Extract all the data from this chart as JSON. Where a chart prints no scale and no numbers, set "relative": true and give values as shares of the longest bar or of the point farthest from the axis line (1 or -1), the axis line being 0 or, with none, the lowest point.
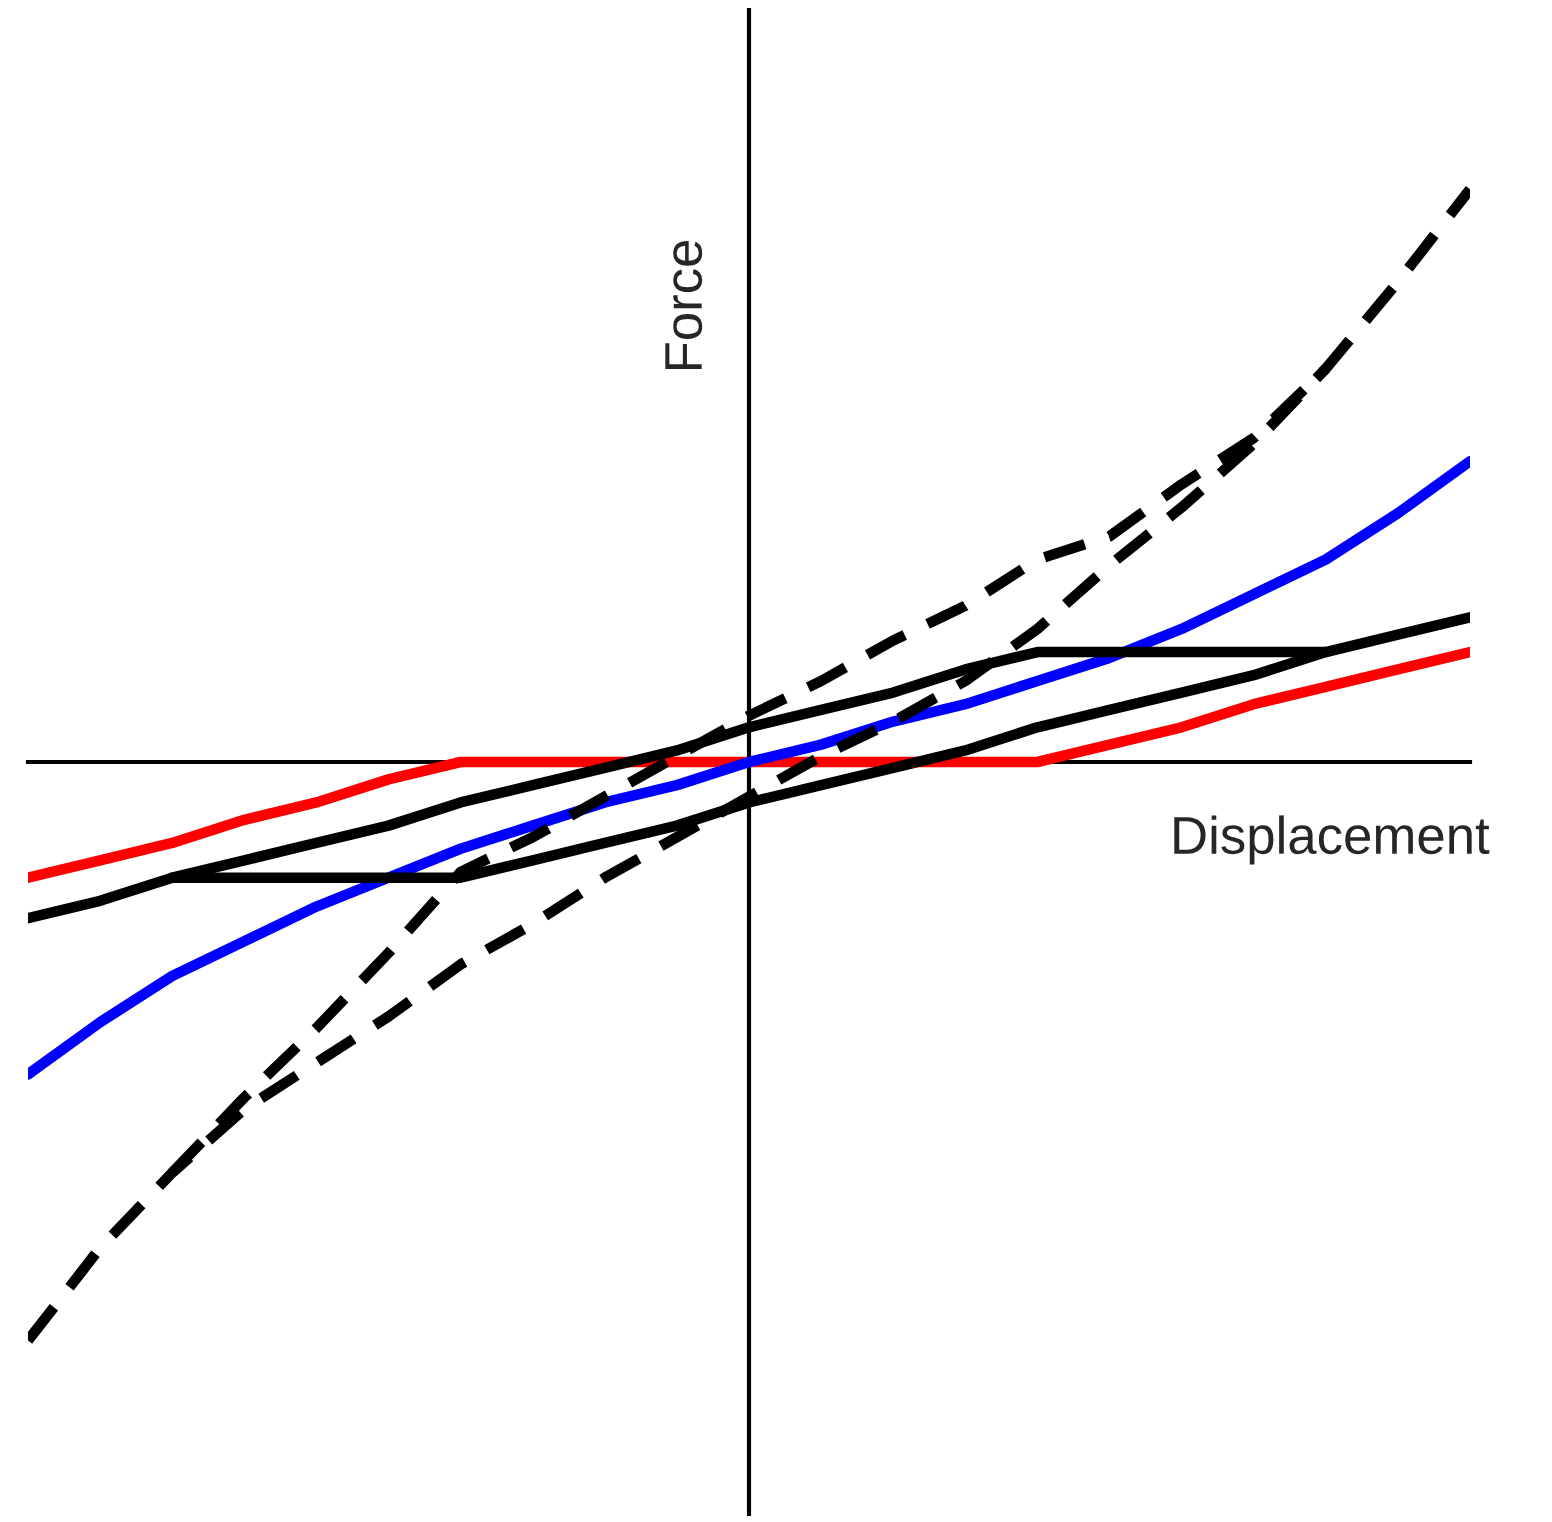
{
  "chart_data": {
    "type": "line",
    "relative": true,
    "xlabel": "Displacement",
    "ylabel": "Force",
    "line_style": "solid",
    "categories": [
      null,
      null,
      null,
      null,
      null,
      null,
      null,
      null,
      null,
      null,
      null,
      null,
      null,
      null,
      null,
      null,
      null,
      null,
      null,
      null,
      null
    ],
    "series": [
      {
        "color": "#ff0000",
        "values": [
          -0.2,
          -0.17,
          -0.14,
          -0.1,
          -0.07,
          -0.03,
          0,
          0,
          0,
          0,
          0,
          0,
          0,
          0,
          0,
          0.03,
          0.06,
          0.1,
          0.13,
          0.16,
          0.19
        ]
      },
      {
        "color": "#0000ff",
        "values": [
          -0.54,
          -0.45,
          -0.37,
          -0.31,
          -0.25,
          -0.2,
          -0.15,
          -0.11,
          -0.07,
          -0.04,
          0,
          0.03,
          0.07,
          0.1,
          0.14,
          0.18,
          0.23,
          0.29,
          0.35,
          0.43,
          0.52
        ]
      },
      {
        "color": "#000000",
        "values": [
          null,
          null,
          -0.2,
          -0.17,
          -0.14,
          -0.11,
          -0.07,
          -0.04,
          -0.01,
          0.02,
          0.06,
          0.09,
          0.12,
          0.16,
          0.19,
          0.19,
          0.19,
          0.19,
          0.19,
          0.22,
          0.25
        ]
      },
      {
        "color": "#000000",
        "values": [
          -0.27,
          -0.24,
          -0.2,
          -0.2,
          -0.2,
          -0.2,
          -0.2,
          -0.17,
          -0.14,
          -0.11,
          -0.07,
          -0.04,
          -0.01,
          0.02,
          0.06,
          0.09,
          0.12,
          0.15,
          0.19,
          null,
          null
        ]
      },
      {
        "color": "#000000",
        "line_style": "dashed",
        "values": [
          null,
          null,
          -0.71,
          -0.58,
          -0.46,
          -0.33,
          -0.19,
          -0.13,
          -0.06,
          0.01,
          0.08,
          0.14,
          0.21,
          0.27,
          0.35,
          0.39,
          0.48,
          0.56,
          0.68,
          0.83,
          0.99
        ]
      },
      {
        "color": "#000000",
        "line_style": "dashed",
        "values": [
          -1.0,
          -0.84,
          -0.71,
          -0.6,
          -0.52,
          -0.44,
          -0.35,
          -0.28,
          -0.2,
          -0.13,
          -0.06,
          0.01,
          0.07,
          0.14,
          0.23,
          0.34,
          0.44,
          0.55,
          0.68,
          null,
          null
        ]
      }
    ]
  }
}
